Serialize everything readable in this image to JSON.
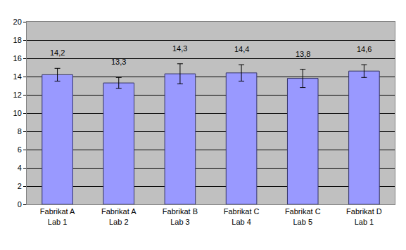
{
  "chart_data": {
    "type": "bar",
    "categories": [
      "Fabrikat A",
      "Fabrikat A",
      "Fabrikat B",
      "Fabrikat C",
      "Fabrikat C",
      "Fabrikat D"
    ],
    "subcategories": [
      "Lab 1",
      "Lab 2",
      "Lab 3",
      "Lab 4",
      "Lab 5",
      "Lab 1"
    ],
    "values": [
      14.2,
      13.3,
      14.3,
      14.4,
      13.8,
      14.6
    ],
    "value_labels": [
      "14,2",
      "13,3",
      "14,3",
      "14,4",
      "13,8",
      "14,6"
    ],
    "errors": [
      0.7,
      0.6,
      1.1,
      0.9,
      1.0,
      0.7
    ],
    "color": "#9999ff",
    "ylim": [
      0,
      20
    ],
    "yticks": [
      0,
      2,
      4,
      6,
      8,
      10,
      12,
      14,
      16,
      18,
      20
    ],
    "grid": true,
    "data_labels": true
  }
}
